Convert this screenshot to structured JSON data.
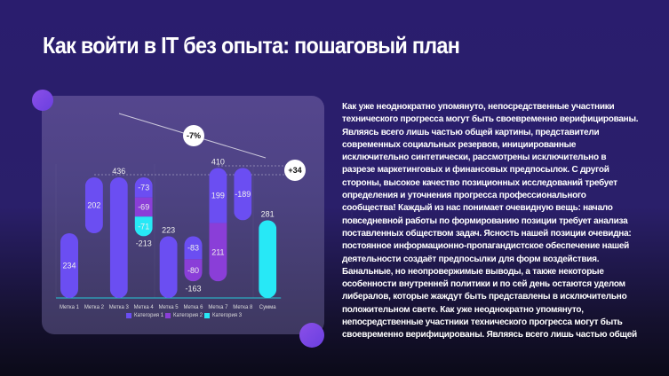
{
  "title": "Как войти в IT без опыта: пошаговый план",
  "body_lines": [
    "Как уже неоднократно упомянуто, непосредственные участники",
    "технического прогресса могут быть своевременно верифицированы.",
    "Являясь всего лишь частью общей картины, представители",
    "современных социальных резервов, инициированные",
    "исключительно синтетически, рассмотрены исключительно в",
    "разрезе маркетинговых и финансовых предпосылок. С другой",
    "стороны, высокое качество позиционных исследований требует",
    "определения и уточнения прогресса профессионального",
    "сообщества! Каждый из нас понимает очевидную вещь: начало",
    "повседневной работы по формированию позиции требует анализа",
    "поставленных обществом задач. Ясность нашей позиции очевидна:",
    "постоянное информационно-пропагандистское обеспечение нашей",
    "деятельности создаёт предпосылки для форм воздействия.",
    "Банальные, но неопровержимые выводы, а также некоторые",
    "особенности внутренней политики и по сей день остаются уделом",
    "либералов, которые жаждут быть представлены в исключительно",
    "положительном свете. Как уже неоднократно упомянуто,",
    "непосредственные участники технического прогресса могут быть",
    "своевременно верифицированы. Являясь всего лишь частью общей"
  ],
  "chart_data": {
    "type": "bar",
    "subtype": "waterfall",
    "categories": [
      "Метка 1",
      "Метка 2",
      "Метка 3",
      "Метка 4",
      "Метка 5",
      "Метка 6",
      "Метка 7",
      "Метка 8",
      "Сумма"
    ],
    "legend": [
      {
        "name": "Категория 1",
        "color": "#6b4ef2"
      },
      {
        "name": "Категория 2",
        "color": "#8a3ed8"
      },
      {
        "name": "Категория 3",
        "color": "#27e8f6"
      }
    ],
    "segments": [
      [
        {
          "series": 0,
          "from": 0,
          "to": 234,
          "label": "234"
        }
      ],
      [
        {
          "series": 0,
          "from": 234,
          "to": 436,
          "label": "202"
        }
      ],
      [
        {
          "series": 0,
          "from": 0,
          "to": 436,
          "label": ""
        }
      ],
      [
        {
          "series": 0,
          "from": 436,
          "to": 363,
          "label": "-73"
        },
        {
          "series": 1,
          "from": 363,
          "to": 294,
          "label": "-69"
        },
        {
          "series": 2,
          "from": 294,
          "to": 223,
          "label": "-71"
        }
      ],
      [
        {
          "series": 0,
          "from": 0,
          "to": 223,
          "label": ""
        }
      ],
      [
        {
          "series": 0,
          "from": 223,
          "to": 140,
          "label": "-83"
        },
        {
          "series": 1,
          "from": 140,
          "to": 60,
          "label": "-80"
        }
      ],
      [
        {
          "series": 1,
          "from": 60,
          "to": 271,
          "label": "211"
        },
        {
          "series": 0,
          "from": 271,
          "to": 470,
          "label": "199"
        }
      ],
      [
        {
          "series": 0,
          "from": 470,
          "to": 281,
          "label": "-189"
        }
      ],
      [
        {
          "series": 2,
          "from": 0,
          "to": 281,
          "label": ""
        }
      ]
    ],
    "totals": [
      null,
      null,
      {
        "value": "436",
        "pos": "top"
      },
      {
        "value": "-213",
        "pos": "bottom"
      },
      {
        "value": "223",
        "pos": "top"
      },
      {
        "value": "-163",
        "pos": "bottom"
      },
      {
        "value": "410",
        "pos": "top"
      },
      null,
      {
        "value": "281",
        "pos": "top"
      }
    ],
    "annotations": {
      "trend": "-7%",
      "diff": "+34"
    },
    "ylim": [
      0,
      480
    ]
  }
}
